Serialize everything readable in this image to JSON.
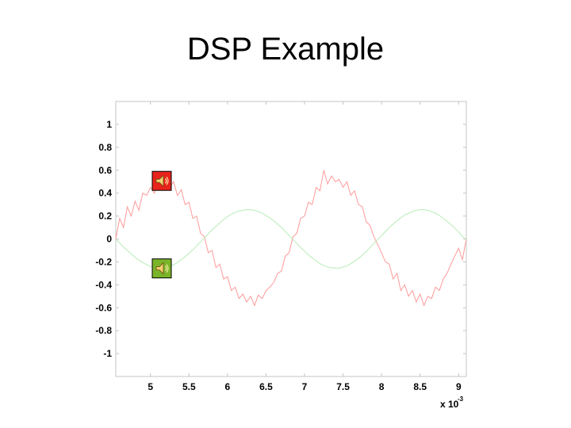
{
  "slide": {
    "title": "DSP Example"
  },
  "audio_buttons": [
    {
      "icon": "speaker-icon",
      "background": "#e8231c",
      "series": "noisy-signal",
      "level": 0.5
    },
    {
      "icon": "speaker-icon",
      "background": "#7ab42a",
      "series": "clean-signal",
      "level": -0.25
    }
  ],
  "chart_data": {
    "type": "line",
    "title": "",
    "xlabel": "",
    "ylabel": "",
    "x_scale_label": "x 10",
    "x_scale_exponent": "-3",
    "xlim": [
      4.55,
      9.1
    ],
    "ylim": [
      -1.2,
      1.2
    ],
    "xticks": [
      5,
      5.5,
      6,
      6.5,
      7,
      7.5,
      8,
      8.5,
      9
    ],
    "xtick_labels": [
      "5",
      "5.5",
      "6",
      "6.5",
      "7",
      "7.5",
      "8",
      "8.5",
      "9"
    ],
    "yticks": [
      1,
      0.8,
      0.6,
      0.4,
      0.2,
      0,
      -0.2,
      -0.4,
      -0.6,
      -0.8,
      -1
    ],
    "ytick_labels": [
      "1",
      "0.8",
      "0.6",
      "0.4",
      "0.2",
      "0",
      "-0.2",
      "-0.4",
      "-0.6",
      "-0.8",
      "-1"
    ],
    "grid": false,
    "legend": "none",
    "series": [
      {
        "color": "#ff9a9a",
        "x": [
          4.55,
          4.6,
          4.65,
          4.7,
          4.75,
          4.8,
          4.85,
          4.9,
          4.95,
          5.0,
          5.05,
          5.1,
          5.15,
          5.2,
          5.25,
          5.3,
          5.35,
          5.4,
          5.45,
          5.5,
          5.55,
          5.6,
          5.65,
          5.7,
          5.75,
          5.8,
          5.85,
          5.9,
          5.95,
          6.0,
          6.05,
          6.1,
          6.15,
          6.2,
          6.25,
          6.3,
          6.35,
          6.4,
          6.45,
          6.5,
          6.55,
          6.6,
          6.65,
          6.7,
          6.75,
          6.8,
          6.85,
          6.9,
          6.95,
          7.0,
          7.05,
          7.1,
          7.15,
          7.2,
          7.25,
          7.3,
          7.35,
          7.4,
          7.45,
          7.5,
          7.55,
          7.6,
          7.65,
          7.7,
          7.75,
          7.8,
          7.85,
          7.9,
          7.95,
          8.0,
          8.05,
          8.1,
          8.15,
          8.2,
          8.25,
          8.3,
          8.35,
          8.4,
          8.45,
          8.5,
          8.55,
          8.6,
          8.65,
          8.7,
          8.75,
          8.8,
          8.85,
          8.9,
          8.95,
          9.0,
          9.05,
          9.1
        ],
        "values": [
          0.0,
          0.18,
          0.1,
          0.28,
          0.2,
          0.33,
          0.25,
          0.4,
          0.38,
          0.45,
          0.4,
          0.5,
          0.44,
          0.52,
          0.45,
          0.5,
          0.38,
          0.43,
          0.3,
          0.32,
          0.18,
          0.2,
          0.05,
          0.02,
          -0.12,
          -0.1,
          -0.25,
          -0.22,
          -0.35,
          -0.33,
          -0.45,
          -0.42,
          -0.52,
          -0.48,
          -0.55,
          -0.5,
          -0.58,
          -0.49,
          -0.52,
          -0.45,
          -0.42,
          -0.38,
          -0.3,
          -0.28,
          -0.15,
          -0.12,
          0.02,
          0.05,
          0.18,
          0.2,
          0.32,
          0.3,
          0.45,
          0.42,
          0.6,
          0.48,
          0.55,
          0.5,
          0.52,
          0.45,
          0.5,
          0.38,
          0.42,
          0.3,
          0.28,
          0.15,
          0.12,
          0.02,
          -0.05,
          -0.12,
          -0.2,
          -0.22,
          -0.35,
          -0.3,
          -0.45,
          -0.4,
          -0.5,
          -0.45,
          -0.55,
          -0.48,
          -0.58,
          -0.5,
          -0.52,
          -0.42,
          -0.45,
          -0.35,
          -0.3,
          -0.22,
          -0.15,
          -0.08,
          -0.18,
          0.0
        ]
      },
      {
        "color": "#b6ecb6",
        "x": [
          4.55,
          4.6,
          4.65,
          4.7,
          4.75,
          4.8,
          4.85,
          4.9,
          4.95,
          5.0,
          5.05,
          5.1,
          5.15,
          5.2,
          5.25,
          5.3,
          5.35,
          5.4,
          5.45,
          5.5,
          5.55,
          5.6,
          5.65,
          5.7,
          5.75,
          5.8,
          5.85,
          5.9,
          5.95,
          6.0,
          6.05,
          6.1,
          6.15,
          6.2,
          6.25,
          6.3,
          6.35,
          6.4,
          6.45,
          6.5,
          6.55,
          6.6,
          6.65,
          6.7,
          6.75,
          6.8,
          6.85,
          6.9,
          6.95,
          7.0,
          7.05,
          7.1,
          7.15,
          7.2,
          7.25,
          7.3,
          7.35,
          7.4,
          7.45,
          7.5,
          7.55,
          7.6,
          7.65,
          7.7,
          7.75,
          7.8,
          7.85,
          7.9,
          7.95,
          8.0,
          8.05,
          8.1,
          8.15,
          8.2,
          8.25,
          8.3,
          8.35,
          8.4,
          8.45,
          8.5,
          8.55,
          8.6,
          8.65,
          8.7,
          8.75,
          8.8,
          8.85,
          8.9,
          8.95,
          9.0,
          9.05,
          9.1
        ],
        "values": [
          0.0,
          -0.035,
          -0.07,
          -0.1,
          -0.13,
          -0.16,
          -0.185,
          -0.205,
          -0.225,
          -0.24,
          -0.25,
          -0.255,
          -0.255,
          -0.25,
          -0.24,
          -0.225,
          -0.205,
          -0.18,
          -0.155,
          -0.125,
          -0.095,
          -0.06,
          -0.025,
          0.01,
          0.045,
          0.08,
          0.11,
          0.14,
          0.17,
          0.195,
          0.215,
          0.23,
          0.245,
          0.25,
          0.255,
          0.255,
          0.25,
          0.24,
          0.225,
          0.205,
          0.185,
          0.16,
          0.13,
          0.1,
          0.065,
          0.03,
          -0.005,
          -0.04,
          -0.075,
          -0.105,
          -0.14,
          -0.165,
          -0.19,
          -0.215,
          -0.23,
          -0.245,
          -0.25,
          -0.255,
          -0.255,
          -0.245,
          -0.235,
          -0.215,
          -0.195,
          -0.17,
          -0.14,
          -0.11,
          -0.075,
          -0.04,
          -0.005,
          0.03,
          0.065,
          0.1,
          0.13,
          0.16,
          0.185,
          0.21,
          0.225,
          0.24,
          0.25,
          0.255,
          0.255,
          0.25,
          0.24,
          0.225,
          0.205,
          0.18,
          0.155,
          0.125,
          0.095,
          0.06,
          0.025,
          -0.01
        ]
      }
    ]
  }
}
